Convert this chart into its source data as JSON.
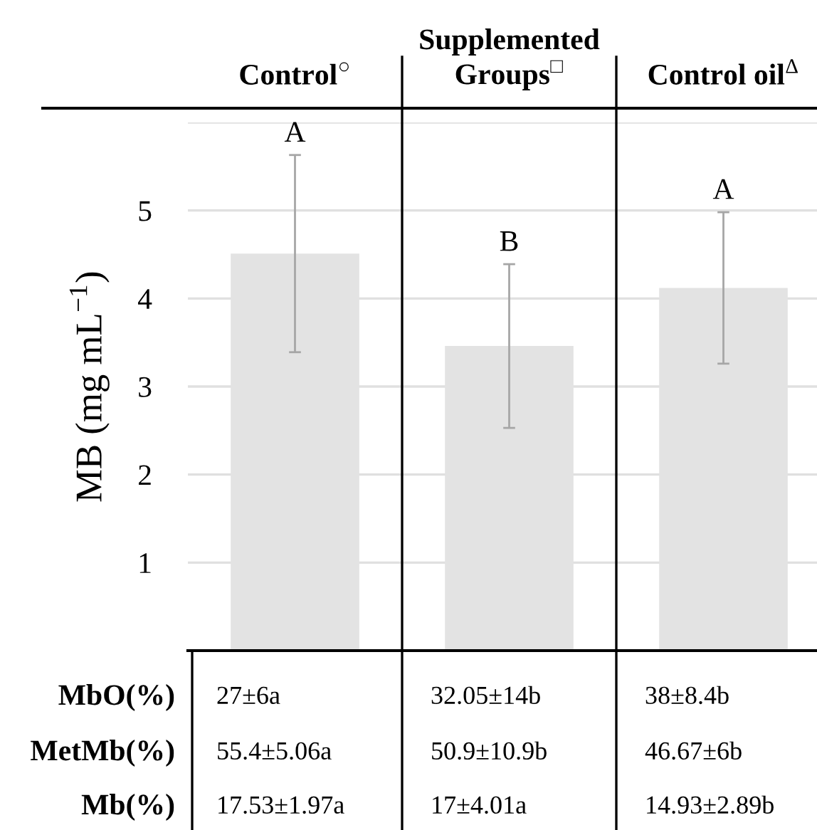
{
  "chart_data": {
    "type": "bar",
    "ylabel": "MB (mg mL$^{−1}$)",
    "categories": [
      "Control$^{○}$",
      "Supplemented\nGroups$^{□}$",
      "Control oil$^{Δ}$"
    ],
    "values": [
      4.51,
      3.46,
      4.12
    ],
    "errors": [
      1.12,
      0.93,
      0.86
    ],
    "color": "#e3e3e3",
    "ylim": [
      0,
      6
    ],
    "yticks": [
      1,
      2,
      3,
      4,
      5,
      {
        "value": 6,
        "label": null
      }
    ],
    "grid": "y",
    "annotations": [
      {
        "text": "A",
        "x": "Control$^{○}$",
        "y": 5.63
      },
      {
        "text": "B",
        "x": "Supplemented\nGroups$^{□}$",
        "y": 4.39
      },
      {
        "text": "A",
        "x": "Control oil$^{Δ}$",
        "y": 4.98
      },
      "MbO(%)",
      "27±6a",
      "32.05±14b",
      "38±8.4b",
      "MetMb(%)",
      "55.4±5.06a",
      "50.9±10.9b",
      "46.67±6b",
      "Mb(%)",
      "17.53±1.97a",
      "17±4.01a",
      "14.93±2.89b"
    ]
  }
}
